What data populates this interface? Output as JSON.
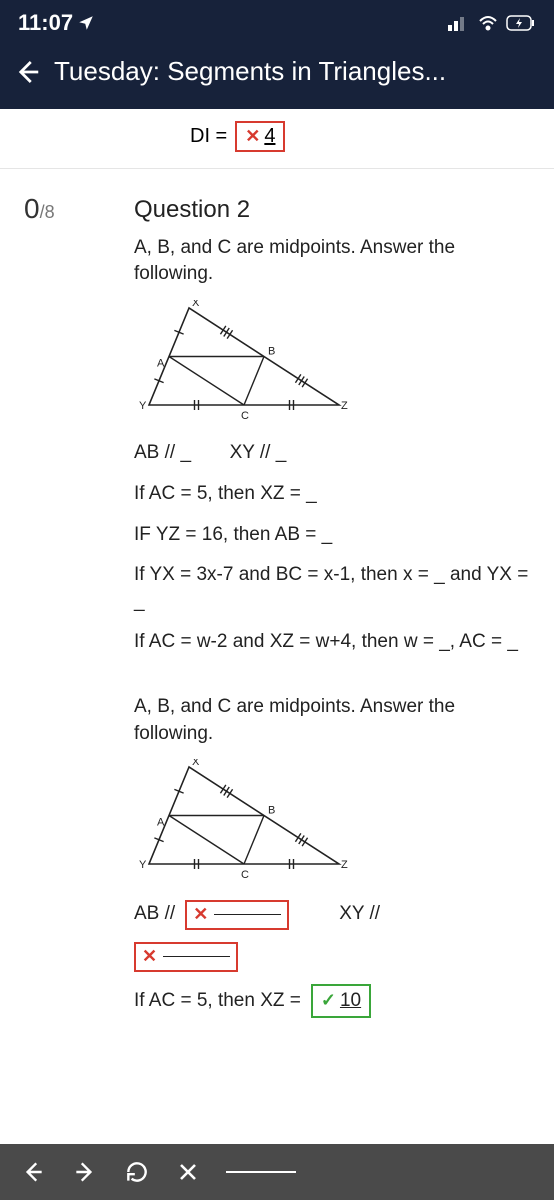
{
  "status": {
    "time": "11:07",
    "location_icon": "location-arrow"
  },
  "header": {
    "title": "Tuesday: Segments in Triangles..."
  },
  "prev": {
    "label": "DI =",
    "value": "4"
  },
  "score": {
    "got": "0",
    "of": "/8"
  },
  "question": {
    "title": "Question 2",
    "prompt": "A, B, and C are midpoints. Answer the following.",
    "lines": {
      "l1a": "AB // _",
      "l1b": "XY // _",
      "l2": "If AC = 5, then XZ = _",
      "l3": "IF YZ = 16, then AB = _",
      "l4": "If YX = 3x-7 and BC = x-1, then x = _ and YX = _",
      "l5": "If AC = w-2 and XZ = w+4, then w = _, AC = _"
    },
    "prompt2": "A, B, and C are midpoints. Answer the following.",
    "ans": {
      "ab": "AB //",
      "xy": "XY //",
      "ac": "If AC = 5, then XZ =",
      "ac_val": "10"
    }
  },
  "triangle": {
    "labels": {
      "X": "X",
      "Y": "Y",
      "Z": "Z",
      "A": "A",
      "B": "B",
      "C": "C"
    },
    "stroke": "#222222",
    "fontsize": 11
  }
}
